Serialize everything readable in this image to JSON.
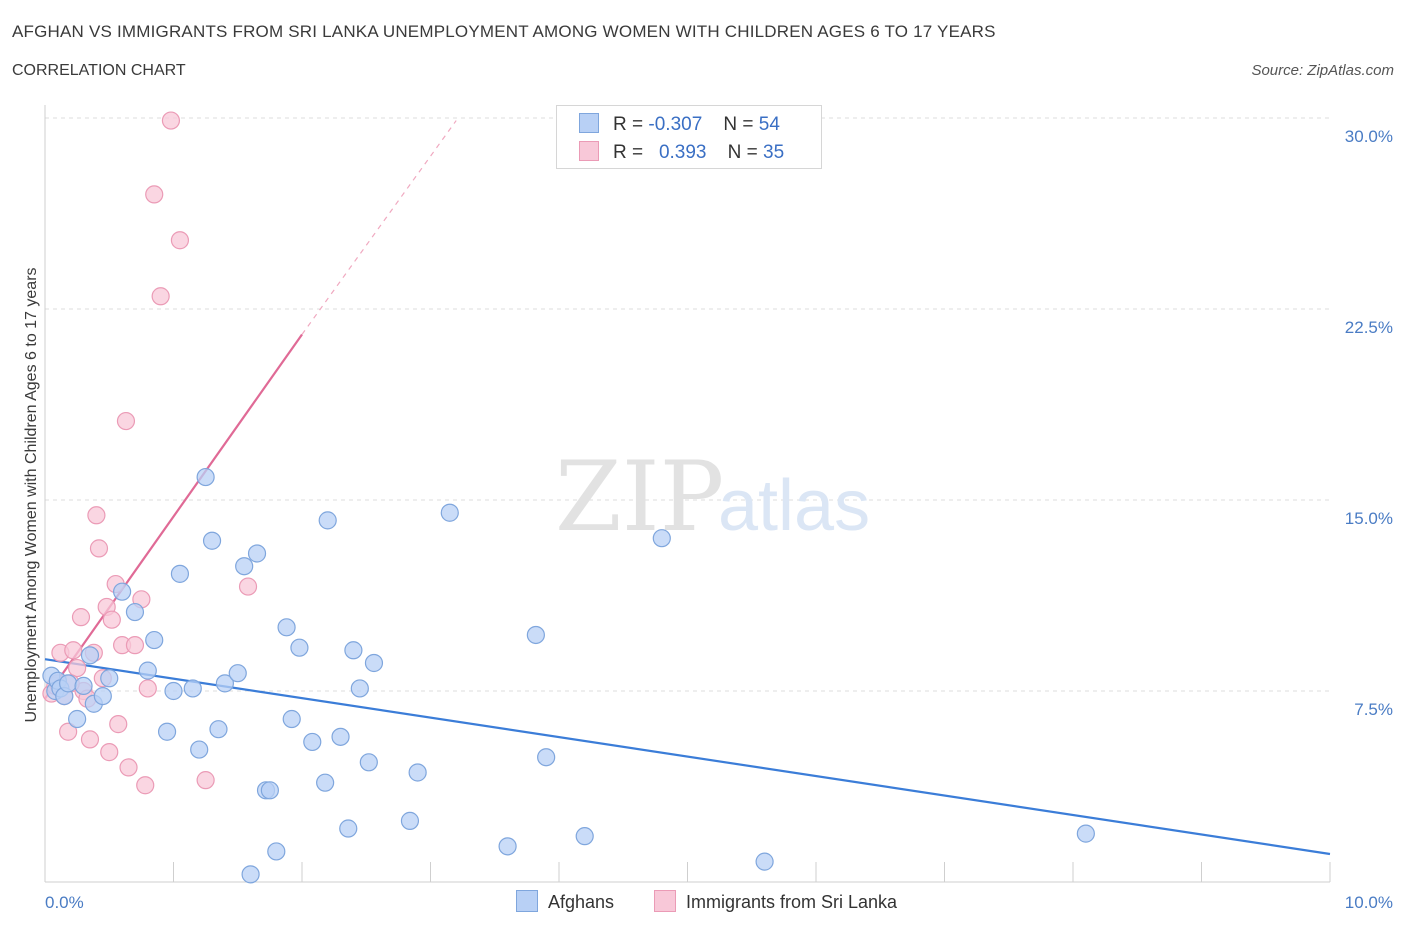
{
  "title": "AFGHAN VS IMMIGRANTS FROM SRI LANKA UNEMPLOYMENT AMONG WOMEN WITH CHILDREN AGES 6 TO 17 YEARS",
  "subtitle": "CORRELATION CHART",
  "source": "Source: ZipAtlas.com",
  "watermark": {
    "zip": "ZIP",
    "atlas": "atlas"
  },
  "legend": {
    "rows": [
      {
        "r_label": "R =",
        "r_value": "-0.307",
        "n_label": "N =",
        "n_value": "54"
      },
      {
        "r_label": "R =",
        "r_value": "0.393",
        "n_label": "N =",
        "n_value": "35"
      }
    ]
  },
  "colors": {
    "afghans_fill": "#b8d0f5",
    "afghans_stroke": "#7fa6dd",
    "afghans_line": "#3b7dd8",
    "srilanka_fill": "#f8c8d8",
    "srilanka_stroke": "#eb9bb6",
    "srilanka_line": "#e06a96",
    "tick_label": "#4a7cc4",
    "grid": "#dddddd"
  },
  "chart_data": {
    "type": "scatter",
    "xlabel": "",
    "ylabel": "Unemployment Among Women with Children Ages 6 to 17 years",
    "xlim": [
      0,
      10
    ],
    "ylim": [
      0,
      30
    ],
    "x_tick_labels": [
      "0.0%",
      "10.0%"
    ],
    "y_ticks": [
      7.5,
      15.0,
      22.5,
      30.0
    ],
    "y_tick_labels": [
      "7.5%",
      "15.0%",
      "22.5%",
      "30.0%"
    ],
    "grid": true,
    "legend_position": "bottom",
    "series": [
      {
        "name": "Afghans",
        "points": [
          [
            0.05,
            8.1
          ],
          [
            0.08,
            7.5
          ],
          [
            0.1,
            7.9
          ],
          [
            0.12,
            7.6
          ],
          [
            0.15,
            7.3
          ],
          [
            0.18,
            7.8
          ],
          [
            0.25,
            6.4
          ],
          [
            0.35,
            8.9
          ],
          [
            0.38,
            7.0
          ],
          [
            0.45,
            7.3
          ],
          [
            0.5,
            8.0
          ],
          [
            0.6,
            11.4
          ],
          [
            0.7,
            10.6
          ],
          [
            0.8,
            8.3
          ],
          [
            0.85,
            9.5
          ],
          [
            0.95,
            5.9
          ],
          [
            1.0,
            7.5
          ],
          [
            1.05,
            12.1
          ],
          [
            1.15,
            7.6
          ],
          [
            1.2,
            5.2
          ],
          [
            1.25,
            15.9
          ],
          [
            1.3,
            13.4
          ],
          [
            1.35,
            6.0
          ],
          [
            1.4,
            7.8
          ],
          [
            1.5,
            8.2
          ],
          [
            1.55,
            12.4
          ],
          [
            1.6,
            0.3
          ],
          [
            1.65,
            12.9
          ],
          [
            1.72,
            3.6
          ],
          [
            1.75,
            3.6
          ],
          [
            1.8,
            1.2
          ],
          [
            1.88,
            10.0
          ],
          [
            1.92,
            6.4
          ],
          [
            1.98,
            9.2
          ],
          [
            2.08,
            5.5
          ],
          [
            2.18,
            3.9
          ],
          [
            2.2,
            14.2
          ],
          [
            2.3,
            5.7
          ],
          [
            2.36,
            2.1
          ],
          [
            2.4,
            9.1
          ],
          [
            2.45,
            7.6
          ],
          [
            2.52,
            4.7
          ],
          [
            2.56,
            8.6
          ],
          [
            2.84,
            2.4
          ],
          [
            2.9,
            4.3
          ],
          [
            3.15,
            14.5
          ],
          [
            3.6,
            1.4
          ],
          [
            3.82,
            9.7
          ],
          [
            3.9,
            4.9
          ],
          [
            4.2,
            1.8
          ],
          [
            4.8,
            13.5
          ],
          [
            5.6,
            0.8
          ],
          [
            8.1,
            1.9
          ],
          [
            0.3,
            7.7
          ]
        ],
        "trend": {
          "x": [
            0.0,
            10.0
          ],
          "y": [
            8.75,
            1.1
          ],
          "style": "solid"
        }
      },
      {
        "name": "Immigrants from Sri Lanka",
        "points": [
          [
            0.05,
            7.4
          ],
          [
            0.08,
            7.7
          ],
          [
            0.1,
            7.8
          ],
          [
            0.12,
            9.0
          ],
          [
            0.15,
            7.3
          ],
          [
            0.18,
            5.9
          ],
          [
            0.22,
            9.1
          ],
          [
            0.25,
            8.4
          ],
          [
            0.28,
            10.4
          ],
          [
            0.3,
            7.5
          ],
          [
            0.33,
            7.2
          ],
          [
            0.35,
            5.6
          ],
          [
            0.38,
            9.0
          ],
          [
            0.4,
            14.4
          ],
          [
            0.42,
            13.1
          ],
          [
            0.45,
            8.0
          ],
          [
            0.48,
            10.8
          ],
          [
            0.5,
            5.1
          ],
          [
            0.52,
            10.3
          ],
          [
            0.55,
            11.7
          ],
          [
            0.57,
            6.2
          ],
          [
            0.6,
            9.3
          ],
          [
            0.63,
            18.1
          ],
          [
            0.65,
            4.5
          ],
          [
            0.7,
            9.3
          ],
          [
            0.75,
            11.1
          ],
          [
            0.78,
            3.8
          ],
          [
            0.8,
            7.6
          ],
          [
            0.85,
            27.0
          ],
          [
            0.9,
            23.0
          ],
          [
            0.98,
            29.9
          ],
          [
            1.05,
            25.2
          ],
          [
            1.25,
            4.0
          ],
          [
            1.58,
            11.6
          ],
          [
            0.2,
            7.8
          ]
        ],
        "trend": {
          "x": [
            0.0,
            2.0
          ],
          "y": [
            7.2,
            21.5
          ],
          "style": "solid"
        },
        "trend_extension": {
          "x": [
            2.0,
            3.2
          ],
          "y": [
            21.5,
            29.9
          ],
          "style": "dashed"
        }
      }
    ]
  },
  "bottom_legend": {
    "afghans": "Afghans",
    "srilanka": "Immigrants from Sri Lanka"
  }
}
